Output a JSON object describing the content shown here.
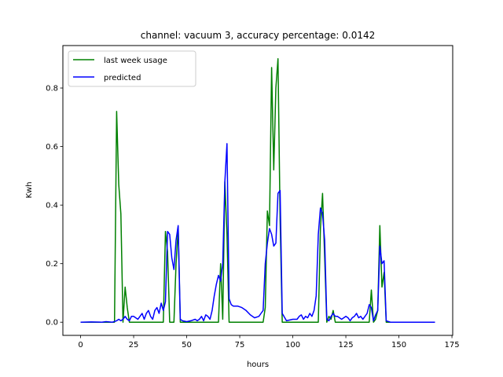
{
  "chart_data": {
    "type": "line",
    "title": "channel: vacuum 3, accuracy percentage: 0.0142",
    "xlabel": "hours",
    "ylabel": "Kwh",
    "xlim": [
      -8.35,
      175.35
    ],
    "ylim": [
      -0.045,
      0.945
    ],
    "xticks": [
      0,
      25,
      50,
      75,
      100,
      125,
      150,
      175
    ],
    "yticks": [
      0.0,
      0.2,
      0.4,
      0.6,
      0.8
    ],
    "legend": {
      "location": "upper-left"
    },
    "series": [
      {
        "name": "last week usage",
        "color": "#008000",
        "points": [
          [
            0,
            0
          ],
          [
            16,
            0
          ],
          [
            17,
            0.72
          ],
          [
            18,
            0.47
          ],
          [
            19,
            0.37
          ],
          [
            20,
            0
          ],
          [
            21,
            0.12
          ],
          [
            22,
            0.05
          ],
          [
            23,
            0
          ],
          [
            39,
            0
          ],
          [
            40,
            0.31
          ],
          [
            41,
            0.24
          ],
          [
            42,
            0
          ],
          [
            44,
            0
          ],
          [
            45,
            0.2
          ],
          [
            46,
            0.32
          ],
          [
            47,
            0
          ],
          [
            63,
            0
          ],
          [
            65,
            0
          ],
          [
            66,
            0.2
          ],
          [
            67,
            0.01
          ],
          [
            68,
            0.48
          ],
          [
            69,
            0.3
          ],
          [
            70,
            0
          ],
          [
            86,
            0
          ],
          [
            87,
            0.05
          ],
          [
            88,
            0.38
          ],
          [
            89,
            0.33
          ],
          [
            90,
            0.87
          ],
          [
            91,
            0.52
          ],
          [
            92,
            0.8
          ],
          [
            93,
            0.9
          ],
          [
            94,
            0.35
          ],
          [
            95,
            0
          ],
          [
            112,
            0
          ],
          [
            113,
            0.32
          ],
          [
            114,
            0.44
          ],
          [
            115,
            0.22
          ],
          [
            116,
            0
          ],
          [
            117,
            0.02
          ],
          [
            118,
            0.01
          ],
          [
            119,
            0.04
          ],
          [
            120,
            0
          ],
          [
            136,
            0
          ],
          [
            137,
            0.11
          ],
          [
            138,
            0
          ],
          [
            139,
            0.01
          ],
          [
            140,
            0.04
          ],
          [
            141,
            0.33
          ],
          [
            142,
            0.12
          ],
          [
            143,
            0.17
          ],
          [
            144,
            0
          ],
          [
            167,
            0
          ]
        ]
      },
      {
        "name": "predicted",
        "color": "#0000ff",
        "points": [
          [
            0,
            0
          ],
          [
            5,
            0.001
          ],
          [
            10,
            0
          ],
          [
            12,
            0.002
          ],
          [
            15,
            0
          ],
          [
            17,
            0.005
          ],
          [
            18,
            0.01
          ],
          [
            19,
            0.005
          ],
          [
            20,
            0.01
          ],
          [
            21,
            0.02
          ],
          [
            22,
            0.01
          ],
          [
            23,
            0.005
          ],
          [
            24,
            0.02
          ],
          [
            25,
            0.02
          ],
          [
            26,
            0.015
          ],
          [
            27,
            0.01
          ],
          [
            28,
            0.02
          ],
          [
            29,
            0.03
          ],
          [
            30,
            0.01
          ],
          [
            31,
            0.03
          ],
          [
            32,
            0.04
          ],
          [
            33,
            0.02
          ],
          [
            34,
            0.01
          ],
          [
            35,
            0.04
          ],
          [
            36,
            0.05
          ],
          [
            37,
            0.03
          ],
          [
            38,
            0.065
          ],
          [
            39,
            0.04
          ],
          [
            40,
            0.07
          ],
          [
            41,
            0.31
          ],
          [
            42,
            0.3
          ],
          [
            43,
            0.22
          ],
          [
            44,
            0.18
          ],
          [
            45,
            0.28
          ],
          [
            46,
            0.33
          ],
          [
            47,
            0.01
          ],
          [
            48,
            0.005
          ],
          [
            50,
            0.002
          ],
          [
            52,
            0.005
          ],
          [
            54,
            0.01
          ],
          [
            55,
            0.005
          ],
          [
            56,
            0.01
          ],
          [
            57,
            0.02
          ],
          [
            58,
            0.005
          ],
          [
            59,
            0.025
          ],
          [
            60,
            0.02
          ],
          [
            61,
            0.01
          ],
          [
            62,
            0.04
          ],
          [
            63,
            0.09
          ],
          [
            64,
            0.13
          ],
          [
            65,
            0.16
          ],
          [
            66,
            0.14
          ],
          [
            67,
            0.2
          ],
          [
            68,
            0.48
          ],
          [
            69,
            0.61
          ],
          [
            70,
            0.08
          ],
          [
            71,
            0.06
          ],
          [
            72,
            0.055
          ],
          [
            74,
            0.055
          ],
          [
            76,
            0.05
          ],
          [
            78,
            0.04
          ],
          [
            80,
            0.025
          ],
          [
            82,
            0.015
          ],
          [
            84,
            0.02
          ],
          [
            85,
            0.03
          ],
          [
            86,
            0.04
          ],
          [
            87,
            0.2
          ],
          [
            88,
            0.27
          ],
          [
            89,
            0.32
          ],
          [
            90,
            0.3
          ],
          [
            91,
            0.26
          ],
          [
            92,
            0.27
          ],
          [
            93,
            0.44
          ],
          [
            94,
            0.45
          ],
          [
            95,
            0.03
          ],
          [
            97,
            0.005
          ],
          [
            100,
            0.01
          ],
          [
            102,
            0.01
          ],
          [
            103,
            0.02
          ],
          [
            104,
            0.025
          ],
          [
            105,
            0.01
          ],
          [
            106,
            0.02
          ],
          [
            107,
            0.015
          ],
          [
            108,
            0.03
          ],
          [
            109,
            0.02
          ],
          [
            110,
            0.04
          ],
          [
            111,
            0.09
          ],
          [
            112,
            0.3
          ],
          [
            113,
            0.39
          ],
          [
            114,
            0.37
          ],
          [
            115,
            0.28
          ],
          [
            116,
            0.01
          ],
          [
            117,
            0.005
          ],
          [
            118,
            0.02
          ],
          [
            119,
            0.03
          ],
          [
            120,
            0.02
          ],
          [
            121,
            0.02
          ],
          [
            123,
            0.01
          ],
          [
            125,
            0.02
          ],
          [
            126,
            0.015
          ],
          [
            127,
            0.005
          ],
          [
            128,
            0.015
          ],
          [
            129,
            0.02
          ],
          [
            130,
            0.03
          ],
          [
            131,
            0.015
          ],
          [
            132,
            0.02
          ],
          [
            133,
            0.01
          ],
          [
            134,
            0.02
          ],
          [
            135,
            0.03
          ],
          [
            136,
            0.06
          ],
          [
            137,
            0.05
          ],
          [
            138,
            0.005
          ],
          [
            139,
            0.025
          ],
          [
            140,
            0.04
          ],
          [
            141,
            0.26
          ],
          [
            142,
            0.2
          ],
          [
            143,
            0.21
          ],
          [
            144,
            0.005
          ],
          [
            146,
            0
          ],
          [
            150,
            0
          ],
          [
            160,
            0
          ],
          [
            167,
            0
          ]
        ]
      }
    ]
  }
}
